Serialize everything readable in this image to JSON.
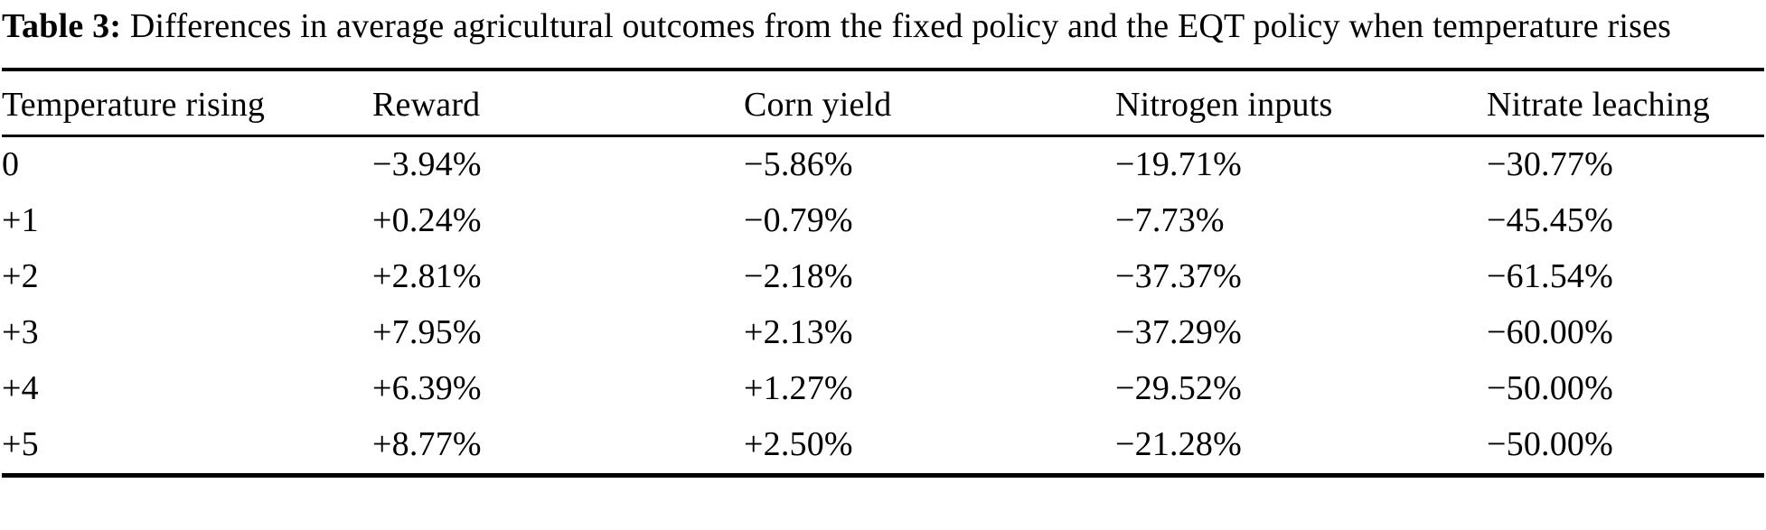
{
  "caption": {
    "label": "Table 3:",
    "text": " Differences in average agricultural outcomes from the fixed policy and the EQT policy when temperature rises"
  },
  "table": {
    "columns": [
      "Temperature rising",
      "Reward",
      "Corn yield",
      "Nitrogen inputs",
      "Nitrate leaching"
    ],
    "rows": [
      [
        "0",
        "−3.94%",
        "−5.86%",
        "−19.71%",
        "−30.77%"
      ],
      [
        "+1",
        "+0.24%",
        "−0.79%",
        "−7.73%",
        "−45.45%"
      ],
      [
        "+2",
        "+2.81%",
        "−2.18%",
        "−37.37%",
        "−61.54%"
      ],
      [
        "+3",
        "+7.95%",
        "+2.13%",
        "−37.29%",
        "−60.00%"
      ],
      [
        "+4",
        "+6.39%",
        "+1.27%",
        "−29.52%",
        "−50.00%"
      ],
      [
        "+5",
        "+8.77%",
        "+2.50%",
        "−21.28%",
        "−50.00%"
      ]
    ]
  },
  "colors": {
    "text": "#000000",
    "background": "#ffffff",
    "rule": "#000000"
  }
}
